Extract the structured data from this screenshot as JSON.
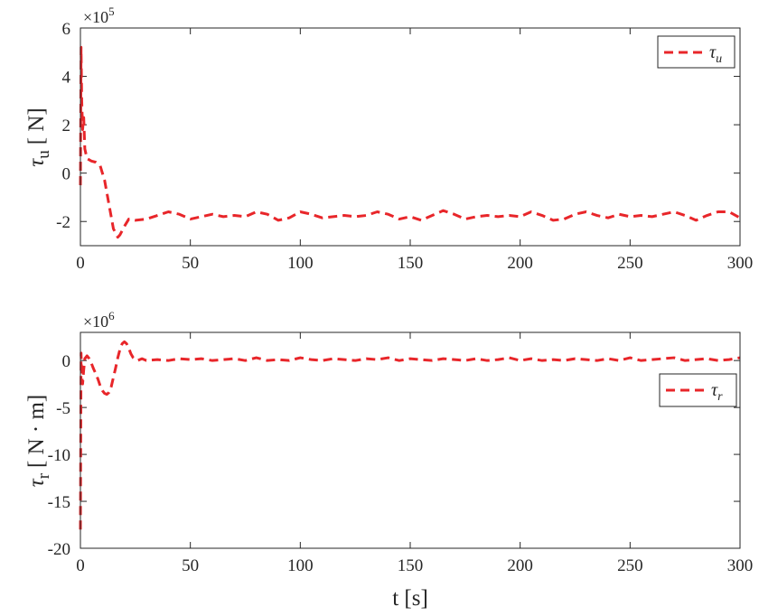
{
  "chart_data": [
    {
      "type": "line",
      "ylabel_symbol": "τ",
      "ylabel_subscript": "u",
      "ylabel_unit": "[ N]",
      "y_multiplier_base": "×10",
      "y_multiplier_exp": "5",
      "xlim": [
        0,
        300
      ],
      "ylim": [
        -3,
        6
      ],
      "x_ticks": [
        "0",
        "50",
        "100",
        "150",
        "200",
        "250",
        "300"
      ],
      "x_tick_values": [
        0,
        50,
        100,
        150,
        200,
        250,
        300
      ],
      "y_ticks": [
        "-2",
        "0",
        "2",
        "4",
        "6"
      ],
      "y_tick_values": [
        -2,
        0,
        2,
        4,
        6
      ],
      "grid": false,
      "legend_position": "top-right",
      "color": "#e8262a",
      "series": [
        {
          "name": "τu",
          "name_symbol": "τ",
          "name_subscript": "u",
          "x": [
            0,
            0.3,
            0.6,
            1,
            1.5,
            2,
            3,
            4,
            5,
            7,
            9,
            11,
            13,
            15,
            17,
            18,
            20,
            22,
            25,
            30,
            35,
            40,
            45,
            50,
            55,
            60,
            65,
            70,
            75,
            80,
            85,
            90,
            95,
            100,
            105,
            110,
            115,
            120,
            125,
            130,
            135,
            140,
            145,
            150,
            155,
            160,
            165,
            170,
            175,
            180,
            185,
            190,
            195,
            200,
            205,
            210,
            215,
            220,
            225,
            230,
            235,
            240,
            245,
            250,
            255,
            260,
            265,
            270,
            275,
            280,
            285,
            290,
            295,
            300
          ],
          "values": [
            -0.5,
            5.2,
            3.0,
            1.8,
            2.3,
            1.0,
            0.6,
            0.55,
            0.5,
            0.45,
            0.3,
            -0.3,
            -1.3,
            -2.3,
            -2.65,
            -2.55,
            -2.2,
            -1.9,
            -1.95,
            -1.9,
            -1.75,
            -1.6,
            -1.7,
            -1.9,
            -1.8,
            -1.7,
            -1.8,
            -1.75,
            -1.8,
            -1.6,
            -1.7,
            -1.95,
            -1.85,
            -1.6,
            -1.7,
            -1.85,
            -1.8,
            -1.75,
            -1.8,
            -1.75,
            -1.6,
            -1.7,
            -1.9,
            -1.8,
            -1.95,
            -1.75,
            -1.55,
            -1.7,
            -1.9,
            -1.8,
            -1.75,
            -1.8,
            -1.75,
            -1.8,
            -1.6,
            -1.75,
            -1.95,
            -1.9,
            -1.7,
            -1.6,
            -1.75,
            -1.85,
            -1.7,
            -1.8,
            -1.75,
            -1.8,
            -1.7,
            -1.6,
            -1.75,
            -1.95,
            -1.75,
            -1.6,
            -1.6,
            -1.85
          ]
        }
      ]
    },
    {
      "type": "line",
      "ylabel_symbol": "τ",
      "ylabel_subscript": "r",
      "ylabel_unit": "[ N · m]",
      "y_multiplier_base": "×10",
      "y_multiplier_exp": "6",
      "xlabel": "t [s]",
      "xlim": [
        0,
        300
      ],
      "ylim": [
        -20,
        3
      ],
      "x_ticks": [
        "0",
        "50",
        "100",
        "150",
        "200",
        "250",
        "300"
      ],
      "x_tick_values": [
        0,
        50,
        100,
        150,
        200,
        250,
        300
      ],
      "y_ticks": [
        "-20",
        "-15",
        "-10",
        "-5",
        "0"
      ],
      "y_tick_values": [
        -20,
        -15,
        -10,
        -5,
        0
      ],
      "grid": false,
      "legend_position": "middle-right",
      "color": "#e8262a",
      "series": [
        {
          "name": "τr",
          "name_symbol": "τ",
          "name_subscript": "r",
          "x": [
            0,
            0.3,
            0.6,
            1,
            1.5,
            2,
            3,
            4,
            5,
            6,
            7,
            8,
            9,
            10,
            11,
            12,
            13,
            14,
            15,
            16,
            17,
            18,
            19,
            20,
            21,
            22,
            23,
            24,
            25,
            26,
            27,
            28,
            30,
            35,
            40,
            45,
            50,
            55,
            60,
            65,
            70,
            75,
            80,
            85,
            90,
            95,
            100,
            105,
            110,
            115,
            120,
            125,
            130,
            135,
            140,
            145,
            150,
            155,
            160,
            165,
            170,
            175,
            180,
            185,
            190,
            195,
            200,
            205,
            210,
            215,
            220,
            225,
            230,
            235,
            240,
            245,
            250,
            255,
            260,
            265,
            270,
            275,
            280,
            285,
            290,
            295,
            300
          ],
          "values": [
            -18,
            0.8,
            -1.5,
            -2.5,
            -1.0,
            0.2,
            0.5,
            0.2,
            -0.3,
            -0.9,
            -1.4,
            -2.0,
            -2.7,
            -3.2,
            -3.5,
            -3.6,
            -3.4,
            -2.8,
            -1.8,
            -0.8,
            0.3,
            1.2,
            1.8,
            2.0,
            1.8,
            1.3,
            0.7,
            0.3,
            0.1,
            0.0,
            0.1,
            0.2,
            0.0,
            0.1,
            0.0,
            0.2,
            0.1,
            0.2,
            0.0,
            0.1,
            0.2,
            0.0,
            0.3,
            0.0,
            0.1,
            0.0,
            0.3,
            0.1,
            0.0,
            0.2,
            0.1,
            0.0,
            0.2,
            0.1,
            0.3,
            0.0,
            0.2,
            0.1,
            0.0,
            0.2,
            0.1,
            0.0,
            0.2,
            0.0,
            0.1,
            0.3,
            0.0,
            0.2,
            0.0,
            0.1,
            0.0,
            0.2,
            0.1,
            0.0,
            0.2,
            0.0,
            0.3,
            0.0,
            0.1,
            0.2,
            0.3,
            0.0,
            0.1,
            0.2,
            0.0,
            0.1,
            0.3
          ]
        }
      ]
    }
  ]
}
